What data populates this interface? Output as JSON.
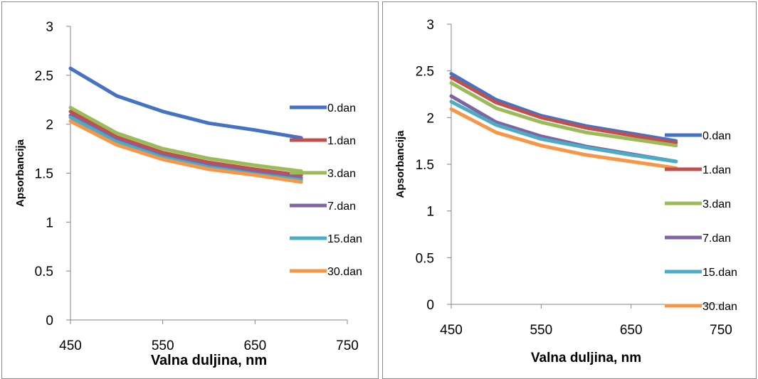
{
  "chart_data": [
    {
      "type": "line",
      "title": "",
      "xlabel": "Valna duljina, nm",
      "ylabel": "Apsorbancija",
      "xlim": [
        450,
        750
      ],
      "ylim": [
        0,
        3
      ],
      "x_ticks": [
        "450",
        "550",
        "650",
        "750"
      ],
      "y_ticks": [
        "0",
        "0.5",
        "1",
        "1.5",
        "2",
        "2.5",
        "3"
      ],
      "grid": false,
      "legend": "right",
      "x": [
        450,
        500,
        550,
        600,
        650,
        700
      ],
      "series": [
        {
          "name": "0.dan",
          "color": "#4472C4",
          "values": [
            2.57,
            2.29,
            2.13,
            2.01,
            1.94,
            1.86
          ]
        },
        {
          "name": "1.dan",
          "color": "#C0504D",
          "values": [
            2.13,
            1.87,
            1.71,
            1.61,
            1.54,
            1.48
          ]
        },
        {
          "name": "3.dan",
          "color": "#9BBB59",
          "values": [
            2.17,
            1.91,
            1.75,
            1.65,
            1.58,
            1.52
          ]
        },
        {
          "name": "7.dan",
          "color": "#8064A2",
          "values": [
            2.09,
            1.84,
            1.68,
            1.58,
            1.51,
            1.45
          ]
        },
        {
          "name": "15.dan",
          "color": "#4BACC6",
          "values": [
            2.07,
            1.82,
            1.66,
            1.56,
            1.49,
            1.43
          ]
        },
        {
          "name": "30.dan",
          "color": "#F79646",
          "values": [
            2.03,
            1.79,
            1.64,
            1.54,
            1.48,
            1.41
          ]
        }
      ]
    },
    {
      "type": "line",
      "title": "",
      "xlabel": "Valna duljina, nm",
      "ylabel": "Apsorbancija",
      "xlim": [
        450,
        750
      ],
      "ylim": [
        0,
        3
      ],
      "x_ticks": [
        "450",
        "550",
        "650",
        "750"
      ],
      "y_ticks": [
        "0",
        "0.5",
        "1",
        "1.5",
        "2",
        "2.5",
        "3"
      ],
      "grid": false,
      "legend": "right",
      "x": [
        450,
        500,
        550,
        600,
        650,
        700
      ],
      "series": [
        {
          "name": "0.dan",
          "color": "#4472C4",
          "values": [
            2.47,
            2.19,
            2.02,
            1.91,
            1.83,
            1.75
          ]
        },
        {
          "name": "1.dan",
          "color": "#C0504D",
          "values": [
            2.43,
            2.16,
            2.0,
            1.89,
            1.81,
            1.73
          ]
        },
        {
          "name": "3.dan",
          "color": "#9BBB59",
          "values": [
            2.37,
            2.1,
            1.95,
            1.84,
            1.77,
            1.7
          ]
        },
        {
          "name": "7.dan",
          "color": "#8064A2",
          "values": [
            2.23,
            1.95,
            1.8,
            1.69,
            1.61,
            1.53
          ]
        },
        {
          "name": "15.dan",
          "color": "#4BACC6",
          "values": [
            2.17,
            1.92,
            1.77,
            1.68,
            1.6,
            1.53
          ]
        },
        {
          "name": "30.dan",
          "color": "#F79646",
          "values": [
            2.09,
            1.84,
            1.7,
            1.6,
            1.53,
            1.46
          ]
        }
      ]
    }
  ]
}
